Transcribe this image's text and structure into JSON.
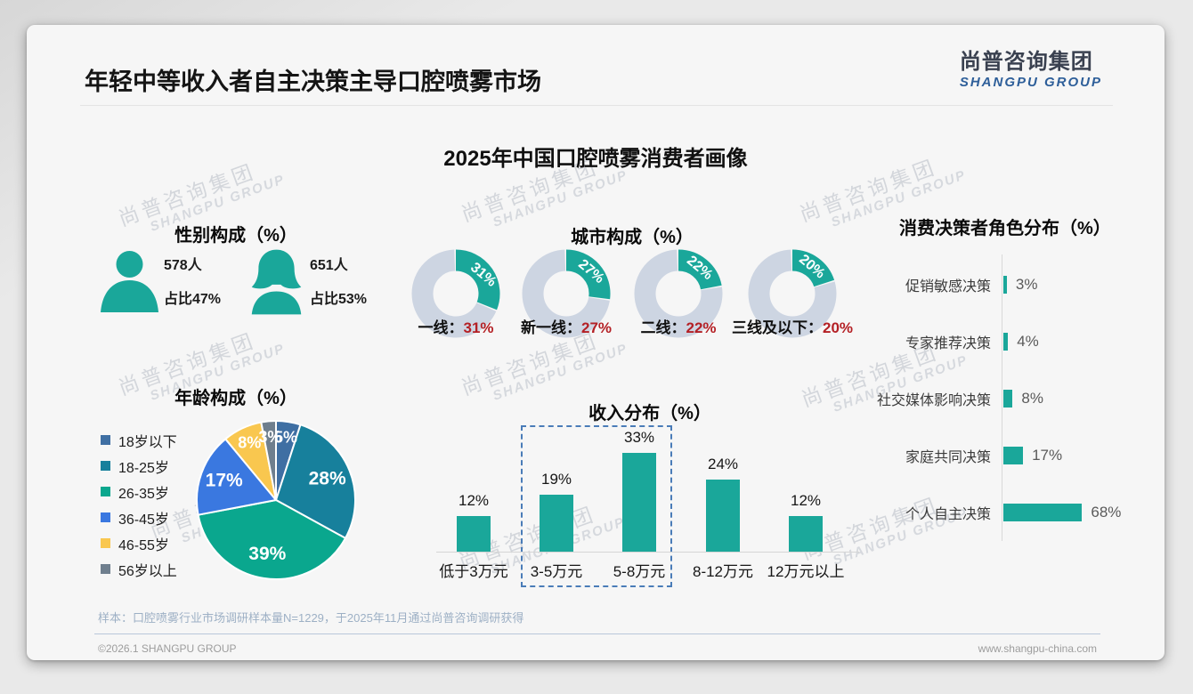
{
  "page": {
    "title": "年轻中等收入者自主决策主导口腔喷雾市场",
    "logo": {
      "cn": "尚普咨询集团",
      "en": "SHANGPU GROUP"
    },
    "watermark": {
      "line1": "尚普咨询集团",
      "line2": "SHANGPU GROUP"
    },
    "footnote": "样本：口腔喷雾行业市场调研样本量N=1229，于2025年11月通过尚普咨询调研获得",
    "footer": {
      "left": "©2026.1 SHANGPU GROUP",
      "right": "www.shangpu-china.com"
    }
  },
  "main_title": "2025年中国口腔喷雾消费者画像",
  "colors": {
    "teal": "#1aa79a",
    "donut_rest": "#cdd5e2",
    "value_red": "#b42025",
    "dashed_box": "#4a7cb8"
  },
  "chart_data": [
    {
      "type": "pictogram",
      "title": "性别构成（%）",
      "items": [
        {
          "icon": "male-icon",
          "count": "578人",
          "share": "占比47%"
        },
        {
          "icon": "female-icon",
          "count": "651人",
          "share": "占比53%"
        }
      ]
    },
    {
      "type": "pie",
      "subtype": "donut-set",
      "title": "城市构成（%）",
      "label_separator": "：",
      "items": [
        {
          "label": "一线",
          "value": 31
        },
        {
          "label": "新一线",
          "value": 27
        },
        {
          "label": "二线",
          "value": 22
        },
        {
          "label": "三线及以下",
          "value": 20
        }
      ],
      "colors": {
        "filled": "#1aa79a",
        "rest": "#cdd5e2",
        "value_text": "#b42025"
      }
    },
    {
      "type": "bar",
      "subtype": "horizontal",
      "title": "消费决策者角色分布（%）",
      "categories": [
        "促销敏感决策",
        "专家推荐决策",
        "社交媒体影响决策",
        "家庭共同决策",
        "个人自主决策"
      ],
      "values": [
        3,
        4,
        8,
        17,
        68
      ],
      "bar_color": "#1aa79a",
      "xlim": [
        0,
        100
      ],
      "grid": false
    },
    {
      "type": "pie",
      "title": "年龄构成（%）",
      "categories": [
        "18岁以下",
        "18-25岁",
        "26-35岁",
        "36-45岁",
        "46-55岁",
        "56岁以上"
      ],
      "values": [
        5,
        28,
        39,
        17,
        8,
        3
      ],
      "colors": [
        "#3f6fa3",
        "#17809c",
        "#0aa78e",
        "#3a78e0",
        "#f9c74f",
        "#6f7f8e"
      ],
      "legend_position": "left",
      "start_angle": "top",
      "direction": "clockwise"
    },
    {
      "type": "bar",
      "title": "收入分布（%）",
      "categories": [
        "低于3万元",
        "3-5万元",
        "5-8万元",
        "8-12万元",
        "12万元以上"
      ],
      "values": [
        12,
        19,
        33,
        24,
        12
      ],
      "bar_color": "#1aa79a",
      "ylim": [
        0,
        40
      ],
      "grid": false,
      "highlight": {
        "indices": [
          1,
          2
        ],
        "style": "dashed-box",
        "color": "#4a7cb8"
      }
    }
  ]
}
